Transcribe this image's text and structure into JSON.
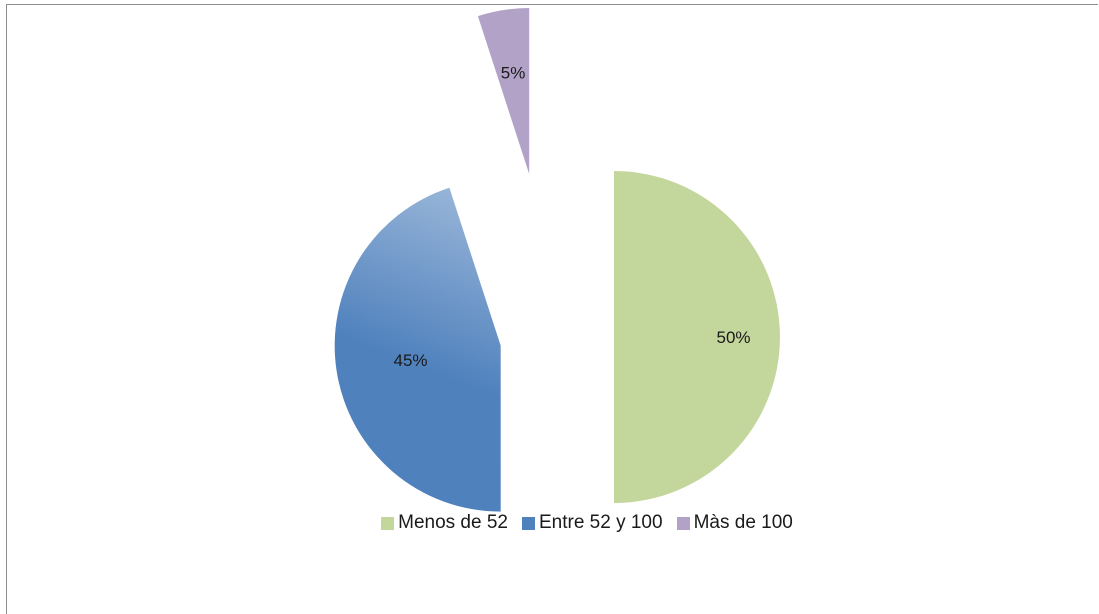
{
  "chart_data": {
    "type": "pie",
    "categories": [
      "Menos de 52",
      "Entre 52 y 100",
      "Màs de 100"
    ],
    "values": [
      50,
      45,
      5
    ],
    "data_labels": [
      "50%",
      "45%",
      "5%"
    ],
    "colors": [
      "#c3d69b",
      "#4f81bd",
      "#b3a2c7"
    ],
    "exploded": true,
    "legend_position": "bottom",
    "title": "",
    "start_angle": "12 o'clock, clockwise"
  },
  "legend": {
    "items": [
      {
        "label": "Menos de 52",
        "color": "#c3d69b"
      },
      {
        "label": "Entre 52 y 100",
        "color": "#4f81bd"
      },
      {
        "label": "Màs de 100",
        "color": "#b3a2c7"
      }
    ]
  }
}
